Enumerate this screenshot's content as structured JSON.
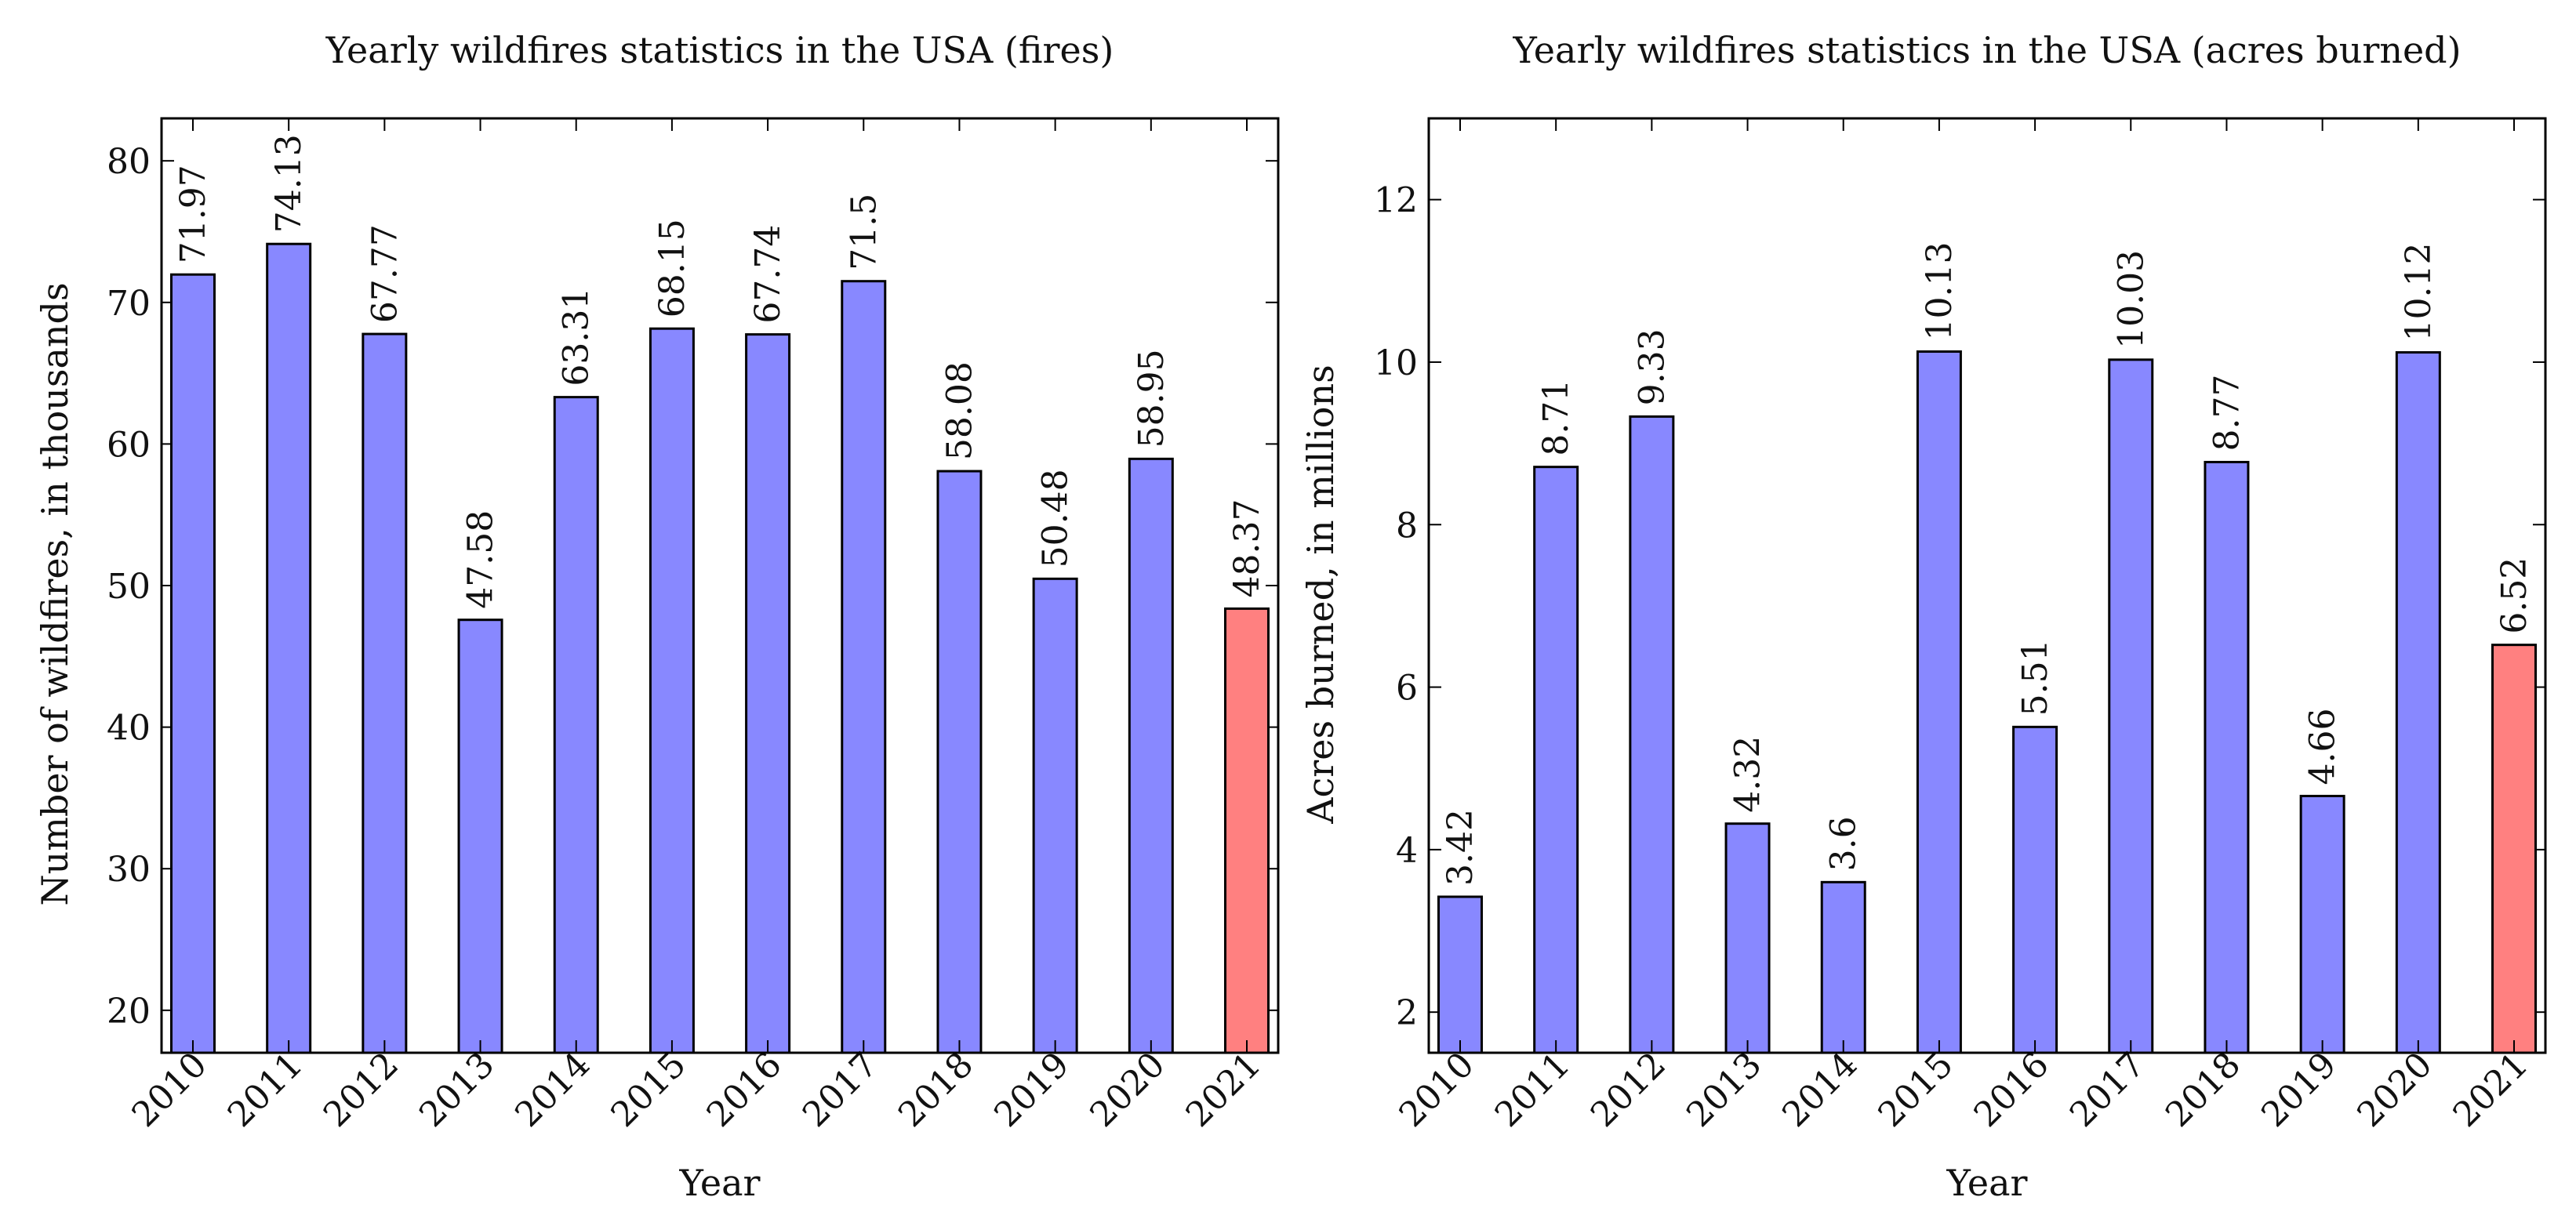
{
  "chart_data": [
    {
      "type": "bar",
      "title": "Yearly wildfires statistics in the USA (fires)",
      "xlabel": "Year",
      "ylabel": "Number of wildfires, in thousands",
      "categories": [
        "2010",
        "2011",
        "2012",
        "2013",
        "2014",
        "2015",
        "2016",
        "2017",
        "2018",
        "2019",
        "2020",
        "2021"
      ],
      "values": [
        71.97,
        74.13,
        67.77,
        47.58,
        63.31,
        68.15,
        67.74,
        71.5,
        58.08,
        50.48,
        58.95,
        48.37
      ],
      "value_labels": [
        "71.97",
        "74.13",
        "67.77",
        "47.58",
        "63.31",
        "68.15",
        "67.74",
        "71.5",
        "58.08",
        "50.48",
        "58.95",
        "48.37"
      ],
      "yticks": [
        20,
        30,
        40,
        50,
        60,
        70,
        80
      ],
      "ylim": [
        17,
        83
      ],
      "colors": {
        "default": "#8888ff",
        "highlight": "#ff8080",
        "highlight_index": 11
      },
      "grid": false
    },
    {
      "type": "bar",
      "title": "Yearly wildfires statistics in the USA (acres burned)",
      "xlabel": "Year",
      "ylabel": "Acres burned, in millions",
      "categories": [
        "2010",
        "2011",
        "2012",
        "2013",
        "2014",
        "2015",
        "2016",
        "2017",
        "2018",
        "2019",
        "2020",
        "2021"
      ],
      "values": [
        3.42,
        8.71,
        9.33,
        4.32,
        3.6,
        10.13,
        5.51,
        10.03,
        8.77,
        4.66,
        10.12,
        6.52
      ],
      "value_labels": [
        "3.42",
        "8.71",
        "9.33",
        "4.32",
        "3.6",
        "10.13",
        "5.51",
        "10.03",
        "8.77",
        "4.66",
        "10.12",
        "6.52"
      ],
      "yticks": [
        2,
        4,
        6,
        8,
        10,
        12
      ],
      "ylim": [
        1.5,
        13.0
      ],
      "colors": {
        "default": "#8888ff",
        "highlight": "#ff8080",
        "highlight_index": 11
      },
      "grid": false
    }
  ]
}
